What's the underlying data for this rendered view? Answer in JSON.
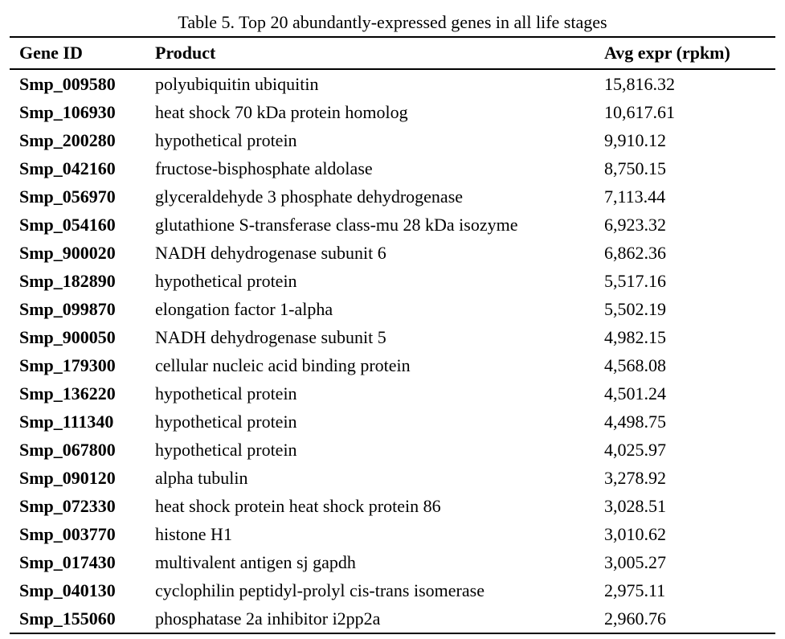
{
  "caption": "Table 5. Top 20 abundantly-expressed genes in all life stages",
  "columns": {
    "gene_id": "Gene ID",
    "product": "Product",
    "avg_expr": "Avg expr (rpkm)"
  },
  "rows": [
    {
      "gene_id": "Smp_009580",
      "product": "polyubiquitin ubiquitin",
      "avg_expr": "15,816.32"
    },
    {
      "gene_id": "Smp_106930",
      "product": "heat shock 70 kDa protein homolog",
      "avg_expr": "10,617.61"
    },
    {
      "gene_id": "Smp_200280",
      "product": "hypothetical protein",
      "avg_expr": "9,910.12"
    },
    {
      "gene_id": "Smp_042160",
      "product": "fructose-bisphosphate aldolase",
      "avg_expr": "8,750.15"
    },
    {
      "gene_id": "Smp_056970",
      "product": "glyceraldehyde 3 phosphate dehydrogenase",
      "avg_expr": "7,113.44"
    },
    {
      "gene_id": "Smp_054160",
      "product": "glutathione S-transferase class-mu 28 kDa isozyme",
      "avg_expr": "6,923.32"
    },
    {
      "gene_id": "Smp_900020",
      "product": "NADH dehydrogenase subunit 6",
      "avg_expr": "6,862.36"
    },
    {
      "gene_id": "Smp_182890",
      "product": "hypothetical protein",
      "avg_expr": "5,517.16"
    },
    {
      "gene_id": "Smp_099870",
      "product": "elongation factor 1-alpha",
      "avg_expr": "5,502.19"
    },
    {
      "gene_id": "Smp_900050",
      "product": "NADH dehydrogenase subunit 5",
      "avg_expr": "4,982.15"
    },
    {
      "gene_id": "Smp_179300",
      "product": "cellular nucleic acid binding protein",
      "avg_expr": "4,568.08"
    },
    {
      "gene_id": "Smp_136220",
      "product": "hypothetical protein",
      "avg_expr": "4,501.24"
    },
    {
      "gene_id": "Smp_111340",
      "product": "hypothetical protein",
      "avg_expr": "4,498.75"
    },
    {
      "gene_id": "Smp_067800",
      "product": "hypothetical protein",
      "avg_expr": "4,025.97"
    },
    {
      "gene_id": "Smp_090120",
      "product": "alpha tubulin",
      "avg_expr": "3,278.92"
    },
    {
      "gene_id": "Smp_072330",
      "product": "heat shock protein heat shock protein 86",
      "avg_expr": "3,028.51"
    },
    {
      "gene_id": "Smp_003770",
      "product": "histone H1",
      "avg_expr": "3,010.62"
    },
    {
      "gene_id": "Smp_017430",
      "product": "multivalent antigen sj gapdh",
      "avg_expr": "3,005.27"
    },
    {
      "gene_id": "Smp_040130",
      "product": "cyclophilin peptidyl-prolyl cis-trans isomerase",
      "avg_expr": "2,975.11"
    },
    {
      "gene_id": "Smp_155060",
      "product": "phosphatase 2a inhibitor i2pp2a",
      "avg_expr": "2,960.76"
    }
  ]
}
